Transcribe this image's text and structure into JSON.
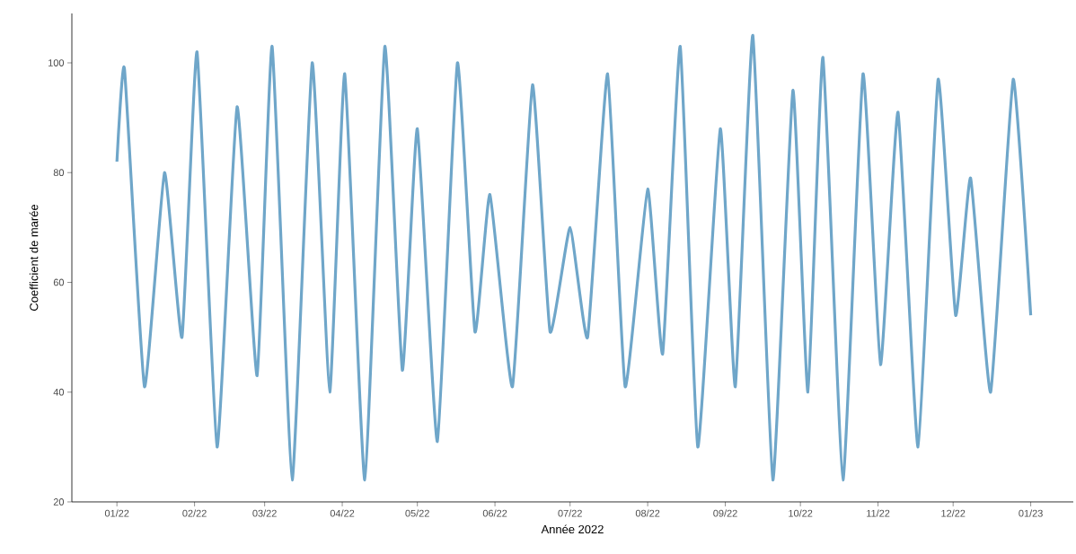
{
  "chart_data": {
    "type": "line",
    "xlabel": "Année 2022",
    "ylabel": "Coefficient de marée",
    "x": [
      "2022-01-01",
      "2022-01-04",
      "2022-01-12",
      "2022-01-20",
      "2022-01-27",
      "2022-02-02",
      "2022-02-10",
      "2022-02-18",
      "2022-02-26",
      "2022-03-04",
      "2022-03-12",
      "2022-03-20",
      "2022-03-27",
      "2022-04-02",
      "2022-04-10",
      "2022-04-18",
      "2022-04-25",
      "2022-05-01",
      "2022-05-09",
      "2022-05-17",
      "2022-05-24",
      "2022-05-30",
      "2022-06-08",
      "2022-06-16",
      "2022-06-23",
      "2022-07-01",
      "2022-07-08",
      "2022-07-16",
      "2022-07-23",
      "2022-08-01",
      "2022-08-07",
      "2022-08-14",
      "2022-08-21",
      "2022-08-30",
      "2022-09-05",
      "2022-09-12",
      "2022-09-20",
      "2022-09-28",
      "2022-10-04",
      "2022-10-10",
      "2022-10-18",
      "2022-10-26",
      "2022-11-02",
      "2022-11-09",
      "2022-11-17",
      "2022-11-25",
      "2022-12-02",
      "2022-12-08",
      "2022-12-16",
      "2022-12-25",
      "2023-01-01"
    ],
    "values": [
      82,
      99,
      41,
      80,
      50,
      102,
      30,
      92,
      43,
      103,
      24,
      100,
      40,
      98,
      24,
      103,
      44,
      88,
      31,
      100,
      51,
      76,
      41,
      96,
      51,
      70,
      50,
      98,
      41,
      77,
      47,
      103,
      30,
      88,
      41,
      105,
      24,
      95,
      40,
      101,
      24,
      98,
      45,
      91,
      30,
      97,
      54,
      79,
      40,
      97,
      54
    ],
    "color": "#6fa6c9",
    "xlim": [
      "2021-12-14",
      "2023-01-18"
    ],
    "ylim": [
      20,
      109
    ],
    "xticks": [
      {
        "value": "2022-01-01",
        "label": "01/22"
      },
      {
        "value": "2022-02-01",
        "label": "02/22"
      },
      {
        "value": "2022-03-01",
        "label": "03/22"
      },
      {
        "value": "2022-04-01",
        "label": "04/22"
      },
      {
        "value": "2022-05-01",
        "label": "05/22"
      },
      {
        "value": "2022-06-01",
        "label": "06/22"
      },
      {
        "value": "2022-07-01",
        "label": "07/22"
      },
      {
        "value": "2022-08-01",
        "label": "08/22"
      },
      {
        "value": "2022-09-01",
        "label": "09/22"
      },
      {
        "value": "2022-10-01",
        "label": "10/22"
      },
      {
        "value": "2022-11-01",
        "label": "11/22"
      },
      {
        "value": "2022-12-01",
        "label": "12/22"
      },
      {
        "value": "2023-01-01",
        "label": "01/23"
      }
    ],
    "yticks": [
      20,
      40,
      60,
      80,
      100
    ],
    "grid": false,
    "marker": "none",
    "line_style": "solid"
  }
}
